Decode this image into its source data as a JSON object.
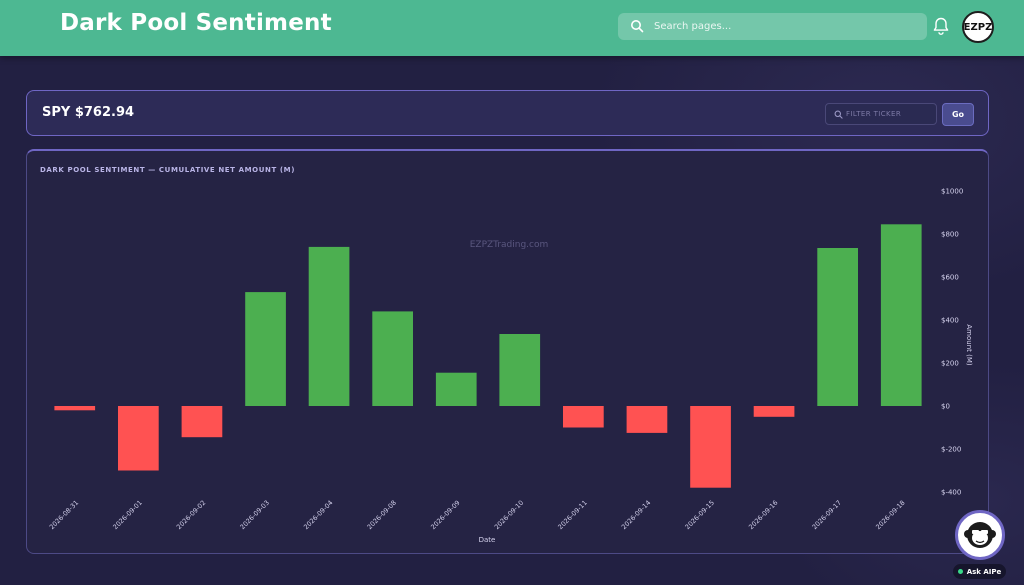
{
  "header": {
    "title": "Dark Pool Sentiment",
    "search_placeholder": "Search pages...",
    "avatar_text": "EZPZ"
  },
  "ticker_panel": {
    "label": "SPY $762.94",
    "filter_placeholder": "FILTER TICKER",
    "go_label": "Go"
  },
  "chart_panel": {
    "title": "DARK POOL SENTIMENT — CUMULATIVE NET AMOUNT (M)",
    "watermark": "EZPZTrading.com"
  },
  "ai_button": {
    "label": "Ask AIPe"
  },
  "colors": {
    "positive": "#4caf50",
    "negative": "#ff5252",
    "accent": "#6f66c4",
    "header": "#4db892"
  },
  "chart_data": {
    "type": "bar",
    "categories": [
      "2026-08-31",
      "2026-09-01",
      "2026-09-02",
      "2026-09-03",
      "2026-09-04",
      "2026-09-08",
      "2026-09-09",
      "2026-09-10",
      "2026-09-11",
      "2026-09-14",
      "2026-09-15",
      "2026-09-16",
      "2026-09-17",
      "2026-09-18"
    ],
    "values": [
      -20,
      -300,
      -145,
      530,
      740,
      440,
      155,
      335,
      -100,
      -125,
      -380,
      -50,
      735,
      845
    ],
    "xlabel": "Date",
    "ylabel": "Amount (M)",
    "ylim": [
      -400,
      1000
    ],
    "yticks": [
      1000,
      800,
      600,
      400,
      200,
      0,
      -200,
      -400
    ],
    "ytick_labels": [
      "$1000",
      "$800",
      "$600",
      "$400",
      "$200",
      "$0",
      "$-200",
      "$-400"
    ],
    "grid": false,
    "y_axis_side": "right"
  }
}
